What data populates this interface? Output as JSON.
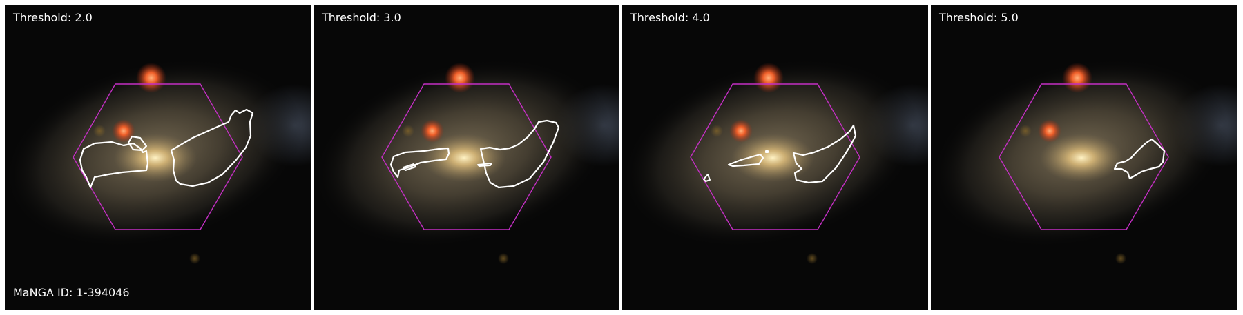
{
  "manga_id": "MaNGA ID: 1-394046",
  "colors": {
    "hexagon": "#c42fc4",
    "contour": "#ffffff",
    "sky": "#070707"
  },
  "panels": [
    {
      "label": "Threshold: 2.0",
      "threshold": 2.0
    },
    {
      "label": "Threshold: 3.0",
      "threshold": 3.0
    },
    {
      "label": "Threshold: 4.0",
      "threshold": 4.0
    },
    {
      "label": "Threshold: 5.0",
      "threshold": 5.0
    }
  ]
}
